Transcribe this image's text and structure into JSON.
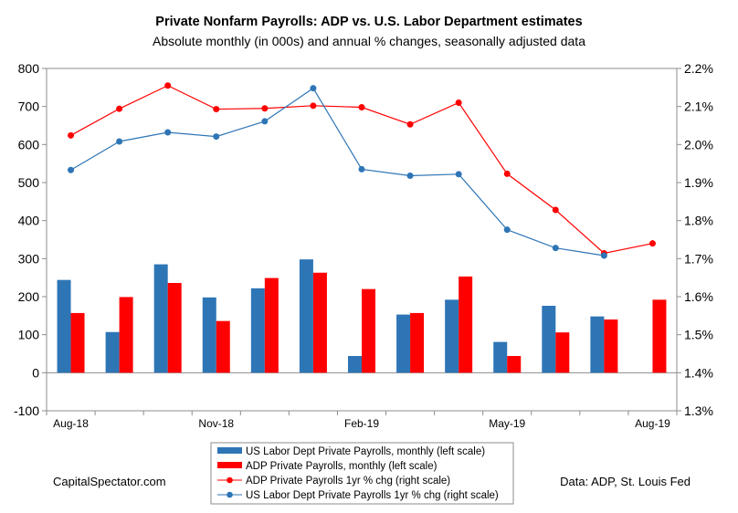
{
  "chart_data": {
    "type": "bar+line",
    "title": "Private Nonfarm Payrolls: ADP vs. U.S. Labor Department estimates",
    "subtitle": "Absolute monthly (in 000s) and annual  % changes, seasonally adjusted data",
    "left_axis": {
      "min": -100,
      "max": 800,
      "step": 100,
      "ticks": [
        "-100",
        "0",
        "100",
        "200",
        "300",
        "400",
        "500",
        "600",
        "700",
        "800"
      ]
    },
    "right_axis": {
      "min": 1.3,
      "max": 2.2,
      "step": 0.1,
      "ticks": [
        "1.3%",
        "1.4%",
        "1.5%",
        "1.6%",
        "1.7%",
        "1.8%",
        "1.9%",
        "2.0%",
        "2.1%",
        "2.2%"
      ]
    },
    "categories": [
      "Aug-18",
      "Sep-18",
      "Oct-18",
      "Nov-18",
      "Dec-18",
      "Jan-19",
      "Feb-19",
      "Mar-19",
      "Apr-19",
      "May-19",
      "Jun-19",
      "Jul-19",
      "Aug-19"
    ],
    "x_tick_labels": [
      {
        "index": 0,
        "label": "Aug-18"
      },
      {
        "index": 3,
        "label": "Nov-18"
      },
      {
        "index": 6,
        "label": "Feb-19"
      },
      {
        "index": 9,
        "label": "May-19"
      },
      {
        "index": 12,
        "label": "Aug-19"
      }
    ],
    "series": [
      {
        "name": "US Labor Dept Private Payrolls, monthly (left scale)",
        "kind": "bar",
        "axis": "left",
        "color": "#2e75b6",
        "values": [
          244,
          107,
          285,
          198,
          222,
          298,
          44,
          153,
          192,
          81,
          176,
          148,
          null
        ]
      },
      {
        "name": "ADP Private Payrolls, monthly (left scale)",
        "kind": "bar",
        "axis": "left",
        "color": "#ff0000",
        "values": [
          157,
          199,
          236,
          136,
          249,
          263,
          220,
          157,
          253,
          44,
          106,
          140,
          192
        ]
      },
      {
        "name": "ADP Private Payrolls 1yr % chg (right scale)",
        "kind": "line",
        "axis": "right",
        "color": "#ff0000",
        "values": [
          2.024,
          2.094,
          2.155,
          2.093,
          2.095,
          2.102,
          2.098,
          2.053,
          2.11,
          1.923,
          1.828,
          1.714,
          1.74
        ]
      },
      {
        "name": "US Labor Dept Private Payrolls 1yr % chg (right scale)",
        "kind": "line",
        "axis": "right",
        "color": "#2e75b6",
        "values": [
          1.933,
          2.008,
          2.032,
          2.021,
          2.061,
          2.148,
          1.935,
          1.918,
          1.922,
          1.776,
          1.728,
          1.708,
          null
        ]
      }
    ],
    "grid": false,
    "legend_position": "bottom"
  },
  "footer": {
    "left_credit": "CapitalSpectator.com",
    "right_credit": "Data: ADP, St. Louis Fed"
  }
}
